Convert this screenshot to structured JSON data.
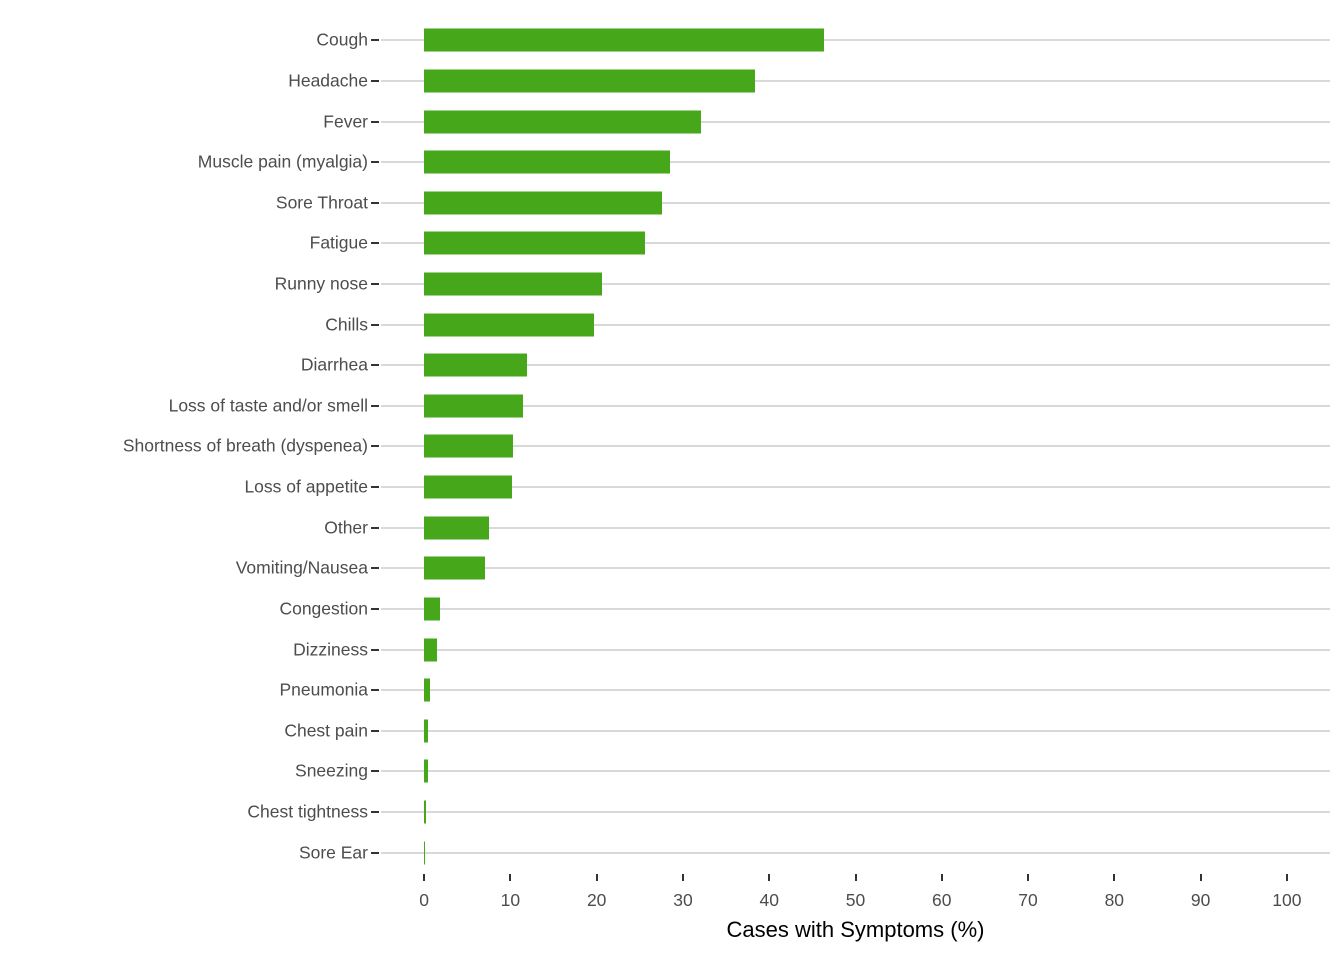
{
  "chart_data": {
    "type": "bar",
    "orientation": "horizontal",
    "title": "",
    "xlabel": "Cases with Symptoms (%)",
    "ylabel": "",
    "categories": [
      "Cough",
      "Headache",
      "Fever",
      "Muscle pain (myalgia)",
      "Sore Throat",
      "Fatigue",
      "Runny nose",
      "Chills",
      "Diarrhea",
      "Loss of taste and/or smell",
      "Shortness of breath (dyspenea)",
      "Loss of appetite",
      "Other",
      "Vomiting/Nausea",
      "Congestion",
      "Dizziness",
      "Pneumonia",
      "Chest pain",
      "Sneezing",
      "Chest tightness",
      "Sore Ear"
    ],
    "values": [
      46.4,
      38.3,
      32.1,
      28.5,
      27.6,
      25.6,
      20.6,
      19.7,
      11.9,
      11.5,
      10.3,
      10.2,
      7.5,
      7.1,
      1.8,
      1.5,
      0.7,
      0.5,
      0.4,
      0.2,
      0.1
    ],
    "x_ticks": [
      0,
      10,
      20,
      30,
      40,
      50,
      60,
      70,
      80,
      90,
      100
    ],
    "xlim": [
      0,
      100
    ],
    "axis_expansion": [
      -5,
      105
    ],
    "grid": "horizontal-per-category",
    "legend": "none",
    "colors": {
      "bar": "#46a71b",
      "gridline": "#d9d9d9",
      "tick_mark": "#333333",
      "axis_text": "#4d4d4d",
      "axis_title": "#000000",
      "background": "#ffffff"
    }
  }
}
